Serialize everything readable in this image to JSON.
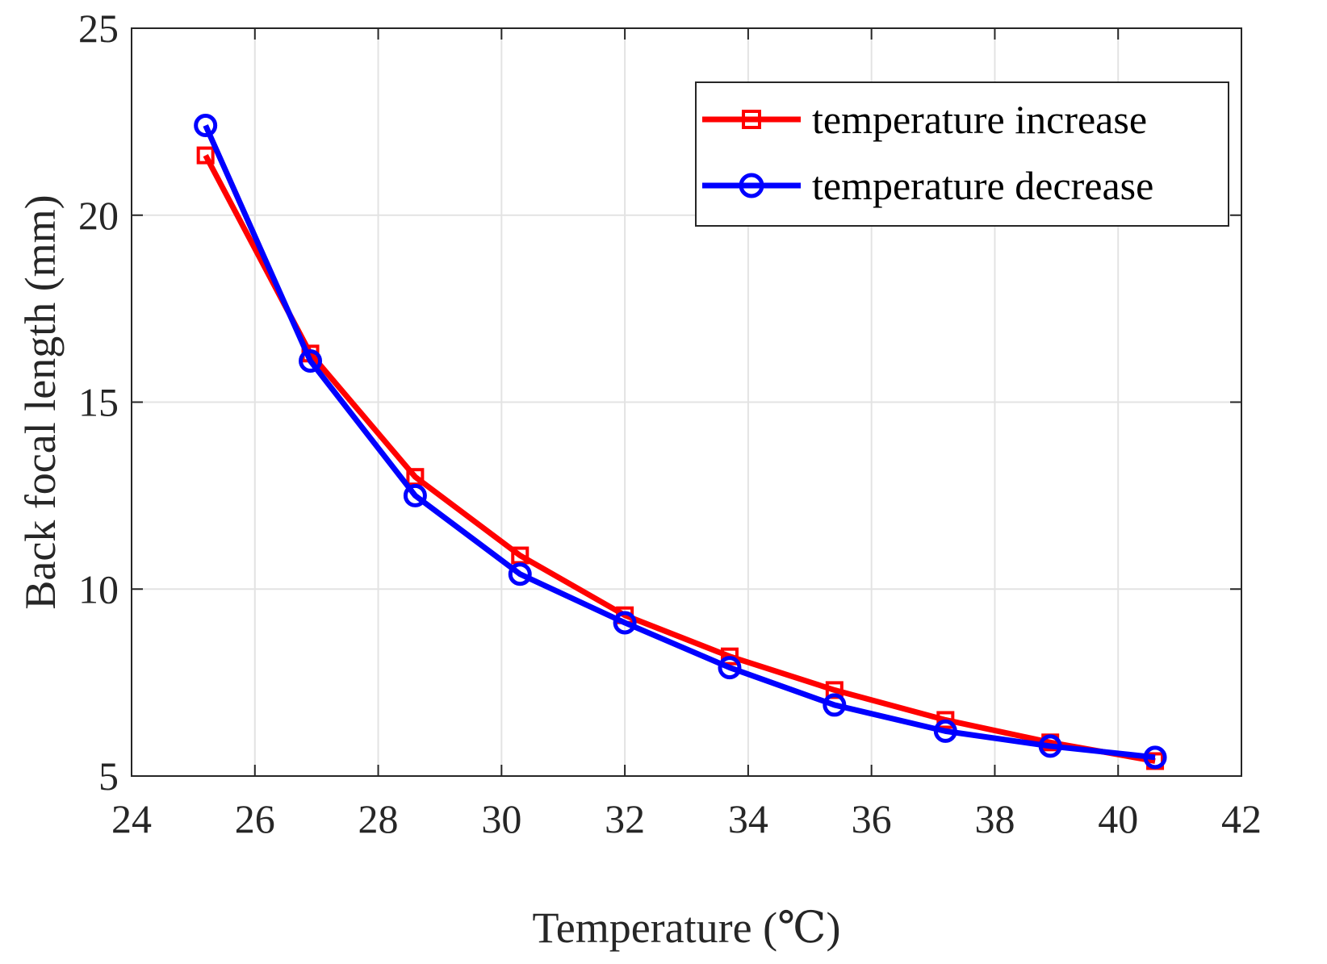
{
  "chart_data": {
    "type": "line",
    "title": "",
    "xlabel": "Temperature (℃)",
    "ylabel": "Back focal length (mm)",
    "xlim": [
      24,
      42
    ],
    "ylim": [
      5,
      25
    ],
    "xticks": [
      24,
      26,
      28,
      30,
      32,
      34,
      36,
      38,
      40,
      42
    ],
    "yticks": [
      5,
      10,
      15,
      20,
      25
    ],
    "grid": true,
    "legend_position": "top-right",
    "series": [
      {
        "name": "temperature increase",
        "color": "#ff0000",
        "marker": "square",
        "x": [
          25.2,
          26.9,
          28.6,
          30.3,
          32.0,
          33.7,
          35.4,
          37.2,
          38.9,
          40.6
        ],
        "y": [
          21.6,
          16.3,
          13.0,
          10.9,
          9.3,
          8.2,
          7.3,
          6.5,
          5.9,
          5.4
        ]
      },
      {
        "name": "temperature decrease",
        "color": "#0000ff",
        "marker": "circle",
        "x": [
          25.2,
          26.9,
          28.6,
          30.3,
          32.0,
          33.7,
          35.4,
          37.2,
          38.9,
          40.6
        ],
        "y": [
          22.4,
          16.1,
          12.5,
          10.4,
          9.1,
          7.9,
          6.9,
          6.2,
          5.8,
          5.5
        ]
      }
    ]
  }
}
